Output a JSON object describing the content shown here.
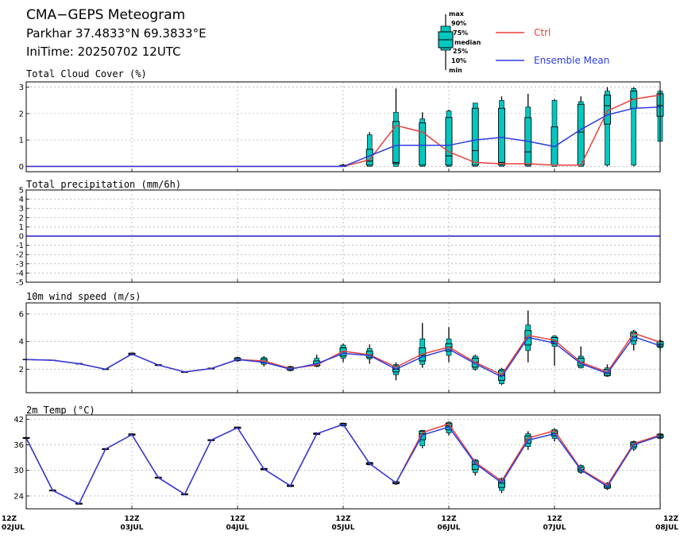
{
  "header": {
    "title": "CMA−GEPS Meteogram",
    "location": "Parkhar 37.4833°N 69.3833°E",
    "init_time": "IniTime: 20250702 12UTC"
  },
  "legend": {
    "box_labels": [
      "max",
      "90%",
      "75%",
      "median",
      "25%",
      "10%",
      "min"
    ],
    "ctrl_label": "Ctrl",
    "mean_label": "Ensemble Mean",
    "ctrl_color": "#e8403c",
    "mean_color": "#2b3be0",
    "box_color": "#00c8c0"
  },
  "x_axis": {
    "ticks": [
      {
        "t": 0,
        "top": "12Z",
        "bottom": "02JUL"
      },
      {
        "t": 24,
        "top": "12Z",
        "bottom": "03JUL"
      },
      {
        "t": 48,
        "top": "12Z",
        "bottom": "04JUL"
      },
      {
        "t": 72,
        "top": "12Z",
        "bottom": "05JUL"
      },
      {
        "t": 96,
        "top": "12Z",
        "bottom": "06JUL"
      },
      {
        "t": 120,
        "top": "12Z",
        "bottom": "07JUL"
      },
      {
        "t": 144,
        "top": "12Z",
        "bottom": "08JUL"
      }
    ]
  },
  "chart_data": [
    {
      "type": "box",
      "title": "Total Cloud Cover (%)",
      "ylim": [
        -0.2,
        3.2
      ],
      "yticks": [
        0,
        1,
        2,
        3
      ],
      "grid": true,
      "x_hours": [
        0,
        6,
        12,
        18,
        24,
        30,
        36,
        42,
        48,
        54,
        60,
        66,
        72,
        78,
        84,
        90,
        96,
        102,
        108,
        114,
        120,
        126,
        132,
        138,
        144
      ],
      "ctrl": [
        0,
        0,
        0,
        0,
        0,
        0,
        0,
        0,
        0,
        0,
        0,
        0,
        0,
        0.25,
        1.55,
        1.3,
        0.55,
        0.15,
        0.1,
        0.1,
        0.05,
        0.05,
        2.1,
        2.55,
        2.7
      ],
      "mean": [
        0,
        0,
        0,
        0,
        0,
        0,
        0,
        0,
        0,
        0,
        0,
        0,
        0,
        0.4,
        0.8,
        0.8,
        0.8,
        1.0,
        1.1,
        0.95,
        0.75,
        1.4,
        1.95,
        2.2,
        2.25
      ],
      "boxes": [
        {
          "h": 72,
          "min": 0,
          "p10": 0,
          "p25": 0,
          "med": 0,
          "p75": 0.05,
          "p90": 0.05,
          "max": 0.1
        },
        {
          "h": 78,
          "min": 0,
          "p10": 0,
          "p25": 0.05,
          "med": 0.2,
          "p75": 0.65,
          "p90": 1.2,
          "max": 1.3
        },
        {
          "h": 84,
          "min": 0,
          "p10": 0,
          "p25": 0.1,
          "med": 0.15,
          "p75": 1.7,
          "p90": 2.05,
          "max": 2.95
        },
        {
          "h": 90,
          "min": 0,
          "p10": 0,
          "p25": 0.05,
          "med": 0.8,
          "p75": 1.65,
          "p90": 1.8,
          "max": 2.05
        },
        {
          "h": 96,
          "min": 0,
          "p10": 0,
          "p25": 0.05,
          "med": 0.4,
          "p75": 1.85,
          "p90": 2.1,
          "max": 2.15
        },
        {
          "h": 102,
          "min": 0,
          "p10": 0,
          "p25": 0.05,
          "med": 0.6,
          "p75": 2.2,
          "p90": 2.4,
          "max": 2.4
        },
        {
          "h": 108,
          "min": 0,
          "p10": 0,
          "p25": 0.05,
          "med": 0.15,
          "p75": 2.2,
          "p90": 2.5,
          "max": 2.65
        },
        {
          "h": 114,
          "min": 0,
          "p10": 0,
          "p25": 0.05,
          "med": 0.55,
          "p75": 1.85,
          "p90": 2.25,
          "max": 2.75
        },
        {
          "h": 120,
          "min": 0,
          "p10": 0,
          "p25": 0.05,
          "med": 0.05,
          "p75": 1.5,
          "p90": 2.5,
          "max": 2.55
        },
        {
          "h": 126,
          "min": 0,
          "p10": 0,
          "p25": 0.05,
          "med": 1.3,
          "p75": 2.35,
          "p90": 2.45,
          "max": 2.65
        },
        {
          "h": 132,
          "min": 0,
          "p10": 0.05,
          "p25": 1.6,
          "med": 2.3,
          "p75": 2.7,
          "p90": 2.85,
          "max": 3.0
        },
        {
          "h": 138,
          "min": 0,
          "p10": 0.05,
          "p25": 2.2,
          "med": 2.55,
          "p75": 2.85,
          "p90": 2.95,
          "max": 3.0
        },
        {
          "h": 144,
          "min": 0.95,
          "p10": 0.95,
          "p25": 1.9,
          "med": 2.3,
          "p75": 2.75,
          "p90": 2.85,
          "max": 2.9
        }
      ]
    },
    {
      "type": "box",
      "title": "Total precipitation (mm/6h)",
      "ylim": [
        -5,
        5
      ],
      "yticks": [
        -5,
        -4,
        -3,
        -2,
        -1,
        0,
        1,
        2,
        3,
        4,
        5
      ],
      "grid": true,
      "x_hours": [
        0,
        6,
        12,
        18,
        24,
        30,
        36,
        42,
        48,
        54,
        60,
        66,
        72,
        78,
        84,
        90,
        96,
        102,
        108,
        114,
        120,
        126,
        132,
        138,
        144
      ],
      "ctrl": [
        0,
        0,
        0,
        0,
        0,
        0,
        0,
        0,
        0,
        0,
        0,
        0,
        0,
        0,
        0,
        0,
        0,
        0,
        0,
        0,
        0,
        0,
        0,
        0,
        0
      ],
      "mean": [
        0,
        0,
        0,
        0,
        0,
        0,
        0,
        0,
        0,
        0,
        0,
        0,
        0,
        0,
        0,
        0,
        0,
        0,
        0,
        0,
        0,
        0,
        0,
        0,
        0
      ],
      "boxes": []
    },
    {
      "type": "box",
      "title": "10m wind speed (m/s)",
      "ylim": [
        0.3,
        6.8
      ],
      "yticks": [
        2,
        4,
        6
      ],
      "grid": true,
      "x_hours": [
        0,
        6,
        12,
        18,
        24,
        30,
        36,
        42,
        48,
        54,
        60,
        66,
        72,
        78,
        84,
        90,
        96,
        102,
        108,
        114,
        120,
        126,
        132,
        138,
        144
      ],
      "ctrl": [
        2.7,
        2.65,
        2.4,
        2.0,
        3.1,
        2.3,
        1.8,
        2.05,
        2.7,
        2.6,
        2.05,
        2.3,
        3.3,
        3.05,
        2.15,
        3.1,
        3.6,
        2.5,
        1.6,
        4.45,
        4.1,
        2.5,
        1.8,
        4.6,
        3.95
      ],
      "mean": [
        2.7,
        2.65,
        2.4,
        2.0,
        3.1,
        2.3,
        1.8,
        2.05,
        2.7,
        2.5,
        2.0,
        2.4,
        3.15,
        3.0,
        2.0,
        2.9,
        3.45,
        2.4,
        1.45,
        4.3,
        3.9,
        2.4,
        1.7,
        4.35,
        3.7
      ],
      "boxes": [
        {
          "h": 0,
          "min": 2.68,
          "p10": 2.69,
          "p25": 2.69,
          "med": 2.7,
          "p75": 2.71,
          "p90": 2.71,
          "max": 2.72
        },
        {
          "h": 6,
          "min": 2.62,
          "p10": 2.63,
          "p25": 2.64,
          "med": 2.65,
          "p75": 2.66,
          "p90": 2.67,
          "max": 2.68
        },
        {
          "h": 12,
          "min": 2.36,
          "p10": 2.37,
          "p25": 2.38,
          "med": 2.4,
          "p75": 2.42,
          "p90": 2.43,
          "max": 2.44
        },
        {
          "h": 18,
          "min": 1.96,
          "p10": 1.97,
          "p25": 1.98,
          "med": 2.0,
          "p75": 2.02,
          "p90": 2.03,
          "max": 2.05
        },
        {
          "h": 24,
          "min": 3.0,
          "p10": 3.02,
          "p25": 3.04,
          "med": 3.1,
          "p75": 3.16,
          "p90": 3.18,
          "max": 3.2
        },
        {
          "h": 30,
          "min": 2.24,
          "p10": 2.26,
          "p25": 2.27,
          "med": 2.3,
          "p75": 2.33,
          "p90": 2.34,
          "max": 2.36
        },
        {
          "h": 36,
          "min": 1.75,
          "p10": 1.76,
          "p25": 1.77,
          "med": 1.8,
          "p75": 1.83,
          "p90": 1.84,
          "max": 1.85
        },
        {
          "h": 42,
          "min": 2.0,
          "p10": 2.01,
          "p25": 2.02,
          "med": 2.05,
          "p75": 2.08,
          "p90": 2.09,
          "max": 2.1
        },
        {
          "h": 48,
          "min": 2.55,
          "p10": 2.6,
          "p25": 2.63,
          "med": 2.7,
          "p75": 2.8,
          "p90": 2.85,
          "max": 2.9
        },
        {
          "h": 54,
          "min": 2.2,
          "p10": 2.35,
          "p25": 2.45,
          "med": 2.6,
          "p75": 2.75,
          "p90": 2.85,
          "max": 2.95
        },
        {
          "h": 60,
          "min": 1.85,
          "p10": 1.9,
          "p25": 1.95,
          "med": 2.05,
          "p75": 2.15,
          "p90": 2.2,
          "max": 2.25
        },
        {
          "h": 66,
          "min": 2.15,
          "p10": 2.2,
          "p25": 2.25,
          "med": 2.4,
          "p75": 2.6,
          "p90": 2.8,
          "max": 3.05
        },
        {
          "h": 72,
          "min": 2.5,
          "p10": 2.8,
          "p25": 2.95,
          "med": 3.25,
          "p75": 3.55,
          "p90": 3.75,
          "max": 3.85
        },
        {
          "h": 78,
          "min": 2.4,
          "p10": 2.75,
          "p25": 2.85,
          "med": 3.05,
          "p75": 3.3,
          "p90": 3.5,
          "max": 3.8
        },
        {
          "h": 84,
          "min": 1.2,
          "p10": 1.6,
          "p25": 1.8,
          "med": 2.0,
          "p75": 2.25,
          "p90": 2.35,
          "max": 2.5
        },
        {
          "h": 90,
          "min": 2.1,
          "p10": 2.35,
          "p25": 2.6,
          "med": 3.0,
          "p75": 3.55,
          "p90": 4.2,
          "max": 5.35
        },
        {
          "h": 96,
          "min": 2.5,
          "p10": 3.0,
          "p25": 3.3,
          "med": 3.6,
          "p75": 3.85,
          "p90": 4.2,
          "max": 5.05
        },
        {
          "h": 102,
          "min": 1.9,
          "p10": 2.0,
          "p25": 2.15,
          "med": 2.5,
          "p75": 2.8,
          "p90": 2.95,
          "max": 3.05
        },
        {
          "h": 108,
          "min": 0.85,
          "p10": 0.95,
          "p25": 1.2,
          "med": 1.55,
          "p75": 1.9,
          "p90": 2.0,
          "max": 2.1
        },
        {
          "h": 114,
          "min": 2.5,
          "p10": 3.35,
          "p25": 3.75,
          "med": 4.3,
          "p75": 4.8,
          "p90": 5.2,
          "max": 6.25
        },
        {
          "h": 120,
          "min": 2.25,
          "p10": 3.65,
          "p25": 3.85,
          "med": 4.0,
          "p75": 4.3,
          "p90": 4.4,
          "max": 4.45
        },
        {
          "h": 126,
          "min": 2.05,
          "p10": 2.1,
          "p25": 2.25,
          "med": 2.5,
          "p75": 2.8,
          "p90": 2.95,
          "max": 3.65
        },
        {
          "h": 132,
          "min": 1.45,
          "p10": 1.5,
          "p25": 1.55,
          "med": 1.7,
          "p75": 2.0,
          "p90": 2.1,
          "max": 2.35
        },
        {
          "h": 138,
          "min": 3.35,
          "p10": 3.8,
          "p25": 4.05,
          "med": 4.35,
          "p75": 4.65,
          "p90": 4.75,
          "max": 4.85
        },
        {
          "h": 144,
          "min": 3.3,
          "p10": 3.55,
          "p25": 3.65,
          "med": 3.8,
          "p75": 4.0,
          "p90": 4.05,
          "max": 4.15
        }
      ]
    },
    {
      "type": "box",
      "title": "2m Temp (°C)",
      "ylim": [
        21,
        43
      ],
      "yticks": [
        24,
        30,
        36,
        42
      ],
      "grid": true,
      "x_hours": [
        0,
        6,
        12,
        18,
        24,
        30,
        36,
        42,
        48,
        54,
        60,
        66,
        72,
        78,
        84,
        90,
        96,
        102,
        108,
        114,
        120,
        126,
        132,
        138,
        144
      ],
      "ctrl": [
        37.6,
        25.3,
        22.2,
        35.0,
        38.4,
        28.3,
        24.4,
        37.1,
        40.0,
        30.3,
        26.4,
        38.6,
        40.8,
        31.6,
        27.1,
        38.9,
        40.9,
        31.9,
        27.5,
        37.6,
        39.3,
        30.3,
        26.6,
        36.3,
        38.3
      ],
      "mean": [
        37.6,
        25.3,
        22.2,
        35.0,
        38.4,
        28.3,
        24.4,
        37.1,
        40.0,
        30.3,
        26.4,
        38.6,
        40.8,
        31.6,
        27.1,
        38.3,
        40.2,
        31.6,
        27.1,
        37.1,
        38.6,
        30.1,
        26.2,
        36.0,
        38.1
      ],
      "boxes": [
        {
          "h": 0,
          "min": 37.4,
          "p10": 37.45,
          "p25": 37.5,
          "med": 37.6,
          "p75": 37.7,
          "p90": 37.75,
          "max": 37.8
        },
        {
          "h": 6,
          "min": 25.1,
          "p10": 25.15,
          "p25": 25.2,
          "med": 25.3,
          "p75": 25.4,
          "p90": 25.45,
          "max": 25.5
        },
        {
          "h": 12,
          "min": 22.0,
          "p10": 22.05,
          "p25": 22.1,
          "med": 22.2,
          "p75": 22.3,
          "p90": 22.35,
          "max": 22.4
        },
        {
          "h": 18,
          "min": 34.8,
          "p10": 34.85,
          "p25": 34.9,
          "med": 35.0,
          "p75": 35.1,
          "p90": 35.15,
          "max": 35.2
        },
        {
          "h": 24,
          "min": 38.1,
          "p10": 38.2,
          "p25": 38.25,
          "med": 38.4,
          "p75": 38.55,
          "p90": 38.6,
          "max": 38.7
        },
        {
          "h": 30,
          "min": 28.1,
          "p10": 28.15,
          "p25": 28.2,
          "med": 28.3,
          "p75": 28.4,
          "p90": 28.45,
          "max": 28.5
        },
        {
          "h": 36,
          "min": 24.2,
          "p10": 24.25,
          "p25": 24.3,
          "med": 24.4,
          "p75": 24.5,
          "p90": 24.55,
          "max": 24.6
        },
        {
          "h": 42,
          "min": 36.9,
          "p10": 36.95,
          "p25": 37.0,
          "med": 37.1,
          "p75": 37.2,
          "p90": 37.25,
          "max": 37.3
        },
        {
          "h": 48,
          "min": 39.7,
          "p10": 39.8,
          "p25": 39.85,
          "med": 40.0,
          "p75": 40.15,
          "p90": 40.2,
          "max": 40.3
        },
        {
          "h": 54,
          "min": 30.0,
          "p10": 30.1,
          "p25": 30.15,
          "med": 30.3,
          "p75": 30.45,
          "p90": 30.5,
          "max": 30.6
        },
        {
          "h": 60,
          "min": 26.1,
          "p10": 26.2,
          "p25": 26.25,
          "med": 26.4,
          "p75": 26.55,
          "p90": 26.6,
          "max": 26.7
        },
        {
          "h": 66,
          "min": 38.3,
          "p10": 38.4,
          "p25": 38.45,
          "med": 38.6,
          "p75": 38.75,
          "p90": 38.8,
          "max": 38.9
        },
        {
          "h": 72,
          "min": 40.3,
          "p10": 40.4,
          "p25": 40.5,
          "med": 40.8,
          "p75": 41.0,
          "p90": 41.1,
          "max": 41.2
        },
        {
          "h": 78,
          "min": 31.2,
          "p10": 31.3,
          "p25": 31.4,
          "med": 31.6,
          "p75": 31.8,
          "p90": 31.9,
          "max": 32.0
        },
        {
          "h": 84,
          "min": 26.6,
          "p10": 26.8,
          "p25": 26.9,
          "med": 27.1,
          "p75": 27.3,
          "p90": 27.4,
          "max": 27.5
        },
        {
          "h": 90,
          "min": 35.2,
          "p10": 35.8,
          "p25": 37.2,
          "med": 38.6,
          "p75": 39.2,
          "p90": 39.4,
          "max": 39.5
        },
        {
          "h": 96,
          "min": 38.2,
          "p10": 38.8,
          "p25": 39.5,
          "med": 40.4,
          "p75": 41.0,
          "p90": 41.3,
          "max": 41.5
        },
        {
          "h": 102,
          "min": 28.8,
          "p10": 29.5,
          "p25": 30.2,
          "med": 31.4,
          "p75": 32.2,
          "p90": 32.5,
          "max": 32.7
        },
        {
          "h": 108,
          "min": 24.7,
          "p10": 25.3,
          "p25": 26.0,
          "med": 27.0,
          "p75": 27.8,
          "p90": 28.1,
          "max": 28.3
        },
        {
          "h": 114,
          "min": 34.8,
          "p10": 35.6,
          "p25": 36.4,
          "med": 37.2,
          "p75": 38.1,
          "p90": 38.6,
          "max": 39.2
        },
        {
          "h": 120,
          "min": 36.8,
          "p10": 37.5,
          "p25": 38.1,
          "med": 38.7,
          "p75": 39.3,
          "p90": 39.6,
          "max": 39.9
        },
        {
          "h": 126,
          "min": 29.2,
          "p10": 29.5,
          "p25": 29.8,
          "med": 30.2,
          "p75": 30.8,
          "p90": 31.2,
          "max": 31.4
        },
        {
          "h": 132,
          "min": 25.4,
          "p10": 25.7,
          "p25": 25.9,
          "med": 26.3,
          "p75": 26.8,
          "p90": 27.0,
          "max": 27.2
        },
        {
          "h": 138,
          "min": 34.6,
          "p10": 35.0,
          "p25": 35.5,
          "med": 36.1,
          "p75": 36.6,
          "p90": 36.8,
          "max": 37.0
        },
        {
          "h": 144,
          "min": 37.3,
          "p10": 37.5,
          "p25": 37.7,
          "med": 38.1,
          "p75": 38.4,
          "p90": 38.6,
          "max": 38.7
        }
      ]
    }
  ]
}
